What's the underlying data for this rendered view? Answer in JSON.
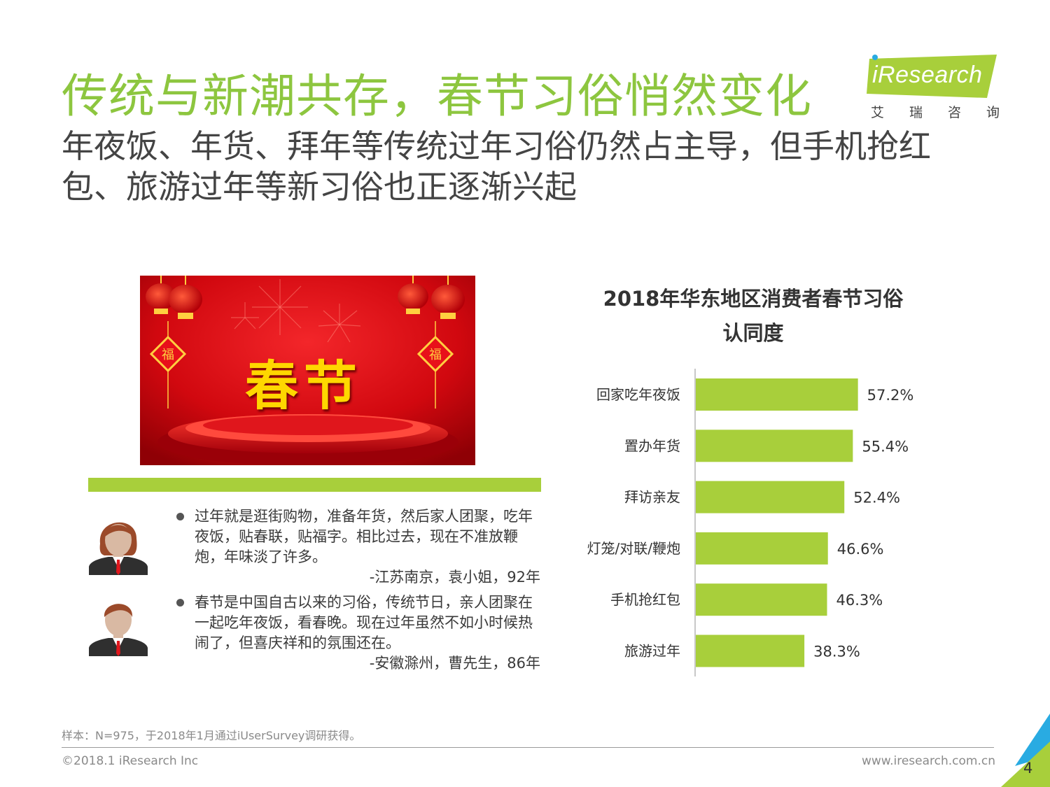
{
  "header": {
    "title": "传统与新潮共存，春节习俗悄然变化",
    "subtitle": "年夜饭、年货、拜年等传统过年习俗仍然占主导，但手机抢红包、旅游过年等新习俗也正逐渐兴起"
  },
  "logo": {
    "brand": "iResearch",
    "cn_chars": [
      "艾",
      "瑞",
      "咨",
      "询"
    ]
  },
  "banner": {
    "text": "春节"
  },
  "quotes": [
    {
      "text": "过年就是逛街购物，准备年货，然后家人团聚，吃年夜饭，贴春联，贴福字。相比过去，现在不准放鞭炮，年味淡了许多。",
      "source": "-江苏南京，袁小姐，92年"
    },
    {
      "text": "春节是中国自古以来的习俗，传统节日，亲人团聚在一起吃年夜饭，看春晚。现在过年虽然不如小时候热闹了，但喜庆祥和的氛围还在。",
      "source": "-安徽滁州，曹先生，86年"
    }
  ],
  "chart_data": {
    "type": "bar",
    "orientation": "horizontal",
    "title": "2018年华东地区消费者春节习俗认同度",
    "categories": [
      "回家吃年夜饭",
      "置办年货",
      "拜访亲友",
      "灯笼/对联/鞭炮",
      "手机抢红包",
      "旅游过年"
    ],
    "values": [
      57.2,
      55.4,
      52.4,
      46.6,
      46.3,
      38.3
    ],
    "value_labels": [
      "57.2%",
      "55.4%",
      "52.4%",
      "46.6%",
      "46.3%",
      "38.3%"
    ],
    "xlim": [
      0,
      100
    ],
    "grid": false,
    "legend": "none",
    "bar_color": "#a8cf3b"
  },
  "footer": {
    "sample": "样本：N=975，于2018年1月通过iUserSurvey调研获得。",
    "copyright": "©2018.1 iResearch Inc",
    "website": "www.iresearch.com.cn",
    "page": "4"
  },
  "colors": {
    "accent_green": "#8dc63f",
    "bar_green": "#a8cf3b",
    "corner_blue": "#29abe2"
  }
}
